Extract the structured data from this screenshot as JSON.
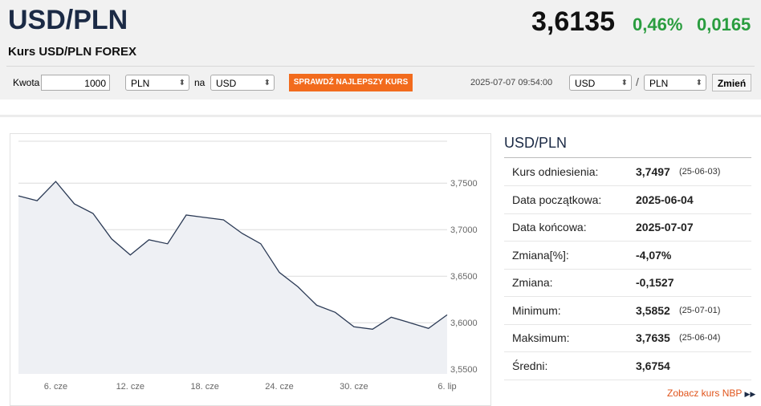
{
  "header": {
    "title": "USD/PLN",
    "subtitle": "Kurs USD/PLN FOREX",
    "rate": "3,6135",
    "change_pct": "0,46%",
    "change": "0,0165"
  },
  "converter": {
    "amount_label": "Kwota",
    "amount": "1000",
    "from": "PLN",
    "on": "na",
    "to": "USD",
    "button": "SPRAWDŹ NAJLEPSZY KURS",
    "timestamp": "2025-07-07 09:54:00",
    "pair_from": "USD",
    "separator": "/",
    "pair_to": "PLN",
    "change_button": "Zmień"
  },
  "chart_data": {
    "type": "line",
    "categories": [
      null,
      null,
      "6. cze",
      null,
      null,
      null,
      "12. cze",
      null,
      null,
      null,
      "18. cze",
      null,
      null,
      null,
      "24. cze",
      null,
      null,
      null,
      "30. cze",
      null,
      null,
      null,
      null,
      "6. lip"
    ],
    "series": [
      {
        "color": "#2b3a55",
        "values": [
          3.7363,
          3.7311,
          3.7517,
          3.7277,
          3.7174,
          3.69,
          3.6728,
          3.6891,
          3.6848,
          3.7157,
          3.7131,
          3.7105,
          3.696,
          3.6848,
          3.654,
          3.6385,
          3.6188,
          3.6111,
          3.5956,
          3.593,
          3.6059,
          3.6,
          3.5939,
          3.6085
        ]
      }
    ],
    "ylim": [
      3.545,
      3.795
    ],
    "yticks": [
      {
        "value": 3.55,
        "label": "3,5500"
      },
      {
        "value": 3.6,
        "label": "3,6000"
      },
      {
        "value": 3.65,
        "label": "3,6500"
      },
      {
        "value": 3.7,
        "label": "3,7000"
      },
      {
        "value": 3.75,
        "label": "3,7500"
      }
    ],
    "grid": true
  },
  "stats": {
    "title": "USD/PLN",
    "rows": [
      [
        "Kurs odniesienia:",
        "3,7497",
        "(25-06-03)"
      ],
      [
        "Data początkowa:",
        "2025-06-04"
      ],
      [
        "Data końcowa:",
        "2025-07-07"
      ],
      [
        "Zmiana[%]:",
        "-4,07%"
      ],
      [
        "Zmiana:",
        "-0,1527"
      ],
      [
        "Minimum:",
        "3,5852",
        "(25-07-01)"
      ],
      [
        "Maksimum:",
        "3,7635",
        "(25-06-04)"
      ],
      [
        "Średni:",
        "3,6754"
      ]
    ],
    "link": "Zobacz kurs NBP"
  }
}
